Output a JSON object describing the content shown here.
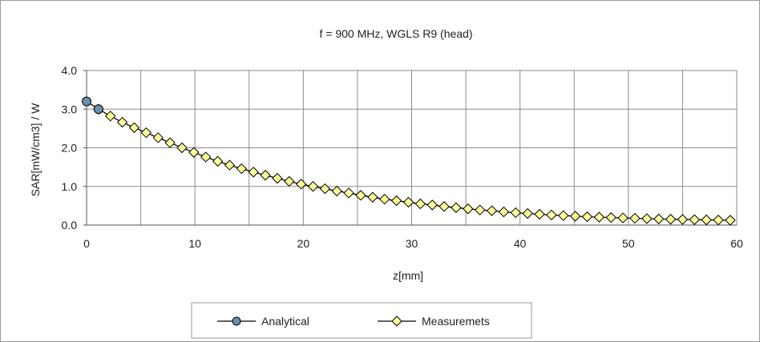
{
  "chart_data": {
    "type": "line",
    "title": "f = 900 MHz, WGLS R9 (head)",
    "xlabel": "z[mm]",
    "ylabel": "SAR[mW/cm3] / W",
    "xlim": [
      0,
      60
    ],
    "ylim": [
      0,
      4
    ],
    "x_ticks": [
      0,
      10,
      20,
      30,
      40,
      50,
      60
    ],
    "y_ticks": [
      "0.0",
      "1.0",
      "2.0",
      "3.0",
      "4.0"
    ],
    "grid": true,
    "legend_position": "bottom",
    "series": [
      {
        "name": "Analytical",
        "marker": "circle",
        "color": "#6a8fa6",
        "x": [
          0,
          1.1
        ],
        "y": [
          3.2,
          3.0
        ]
      },
      {
        "name": "Measuremets",
        "marker": "diamond",
        "color": "#ffff99",
        "x": [
          1.1,
          2.2,
          3.3,
          4.4,
          5.5,
          6.6,
          7.7,
          8.8,
          9.9,
          11.0,
          12.1,
          13.2,
          14.3,
          15.4,
          16.5,
          17.6,
          18.7,
          19.8,
          20.9,
          22.0,
          23.1,
          24.2,
          25.3,
          26.4,
          27.5,
          28.6,
          29.7,
          30.8,
          31.9,
          33.0,
          34.1,
          35.2,
          36.3,
          37.4,
          38.5,
          39.6,
          40.7,
          41.8,
          42.9,
          44.0,
          45.1,
          46.2,
          47.3,
          48.4,
          49.5,
          50.6,
          51.7,
          52.8,
          53.9,
          55.0,
          56.1,
          57.2,
          58.3,
          59.4
        ],
        "y": [
          3.0,
          2.82,
          2.66,
          2.52,
          2.39,
          2.26,
          2.13,
          2.0,
          1.88,
          1.76,
          1.65,
          1.55,
          1.46,
          1.37,
          1.29,
          1.21,
          1.13,
          1.06,
          1.0,
          0.94,
          0.88,
          0.83,
          0.77,
          0.72,
          0.67,
          0.63,
          0.59,
          0.55,
          0.52,
          0.48,
          0.45,
          0.42,
          0.39,
          0.37,
          0.34,
          0.32,
          0.3,
          0.28,
          0.26,
          0.245,
          0.23,
          0.215,
          0.205,
          0.195,
          0.185,
          0.175,
          0.165,
          0.158,
          0.15,
          0.145,
          0.14,
          0.135,
          0.13,
          0.125
        ]
      }
    ]
  }
}
